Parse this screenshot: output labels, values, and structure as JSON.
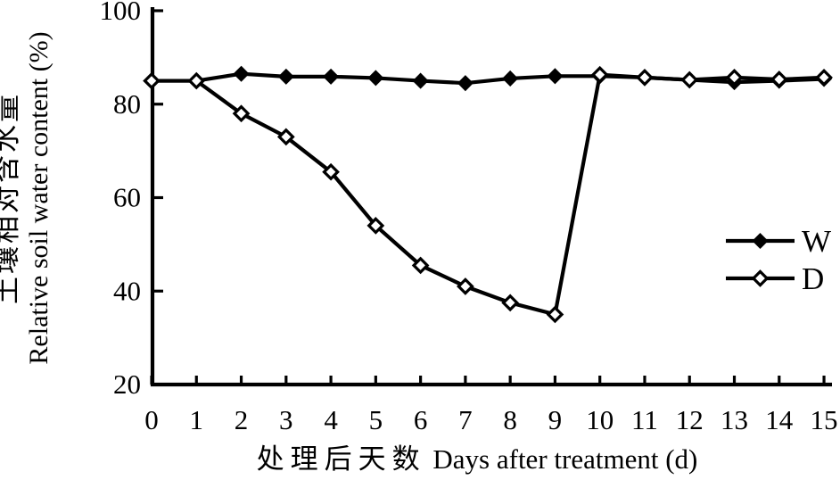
{
  "figure": {
    "background": "#ffffff",
    "ink_color": "#000000"
  },
  "chart_data": {
    "type": "line",
    "title": "",
    "x": [
      0,
      1,
      2,
      3,
      4,
      5,
      6,
      7,
      8,
      9,
      10,
      11,
      12,
      13,
      14,
      15
    ],
    "series": [
      {
        "name": "W",
        "marker": "filled-diamond",
        "color": "#000000",
        "values": [
          85.0,
          85.0,
          86.5,
          85.9,
          85.9,
          85.6,
          85.0,
          84.5,
          85.5,
          86.0,
          86.0,
          85.7,
          85.2,
          84.7,
          85.0,
          85.4
        ]
      },
      {
        "name": "D",
        "marker": "open-diamond",
        "color": "#000000",
        "values": [
          85.0,
          85.0,
          78.0,
          73.0,
          65.5,
          54.0,
          45.5,
          41.0,
          37.5,
          35.0,
          86.3,
          85.7,
          85.2,
          85.7,
          85.3,
          85.7
        ]
      }
    ],
    "xlabel_cn": "处理后天数",
    "xlabel_en": " Days after treatment (d)",
    "ylabel_cn": "土壤相对含水量",
    "ylabel_en": "Relative soil water content (%)",
    "xlim": [
      0,
      15
    ],
    "ylim": [
      20,
      100
    ],
    "xticks": [
      0,
      1,
      2,
      3,
      4,
      5,
      6,
      7,
      8,
      9,
      10,
      11,
      12,
      13,
      14,
      15
    ],
    "yticks": [
      20,
      40,
      60,
      80,
      100
    ],
    "grid": false,
    "legend_position": "inside-right-middle",
    "legend": [
      {
        "label": "W",
        "marker": "filled-diamond"
      },
      {
        "label": "D",
        "marker": "open-diamond"
      }
    ]
  }
}
